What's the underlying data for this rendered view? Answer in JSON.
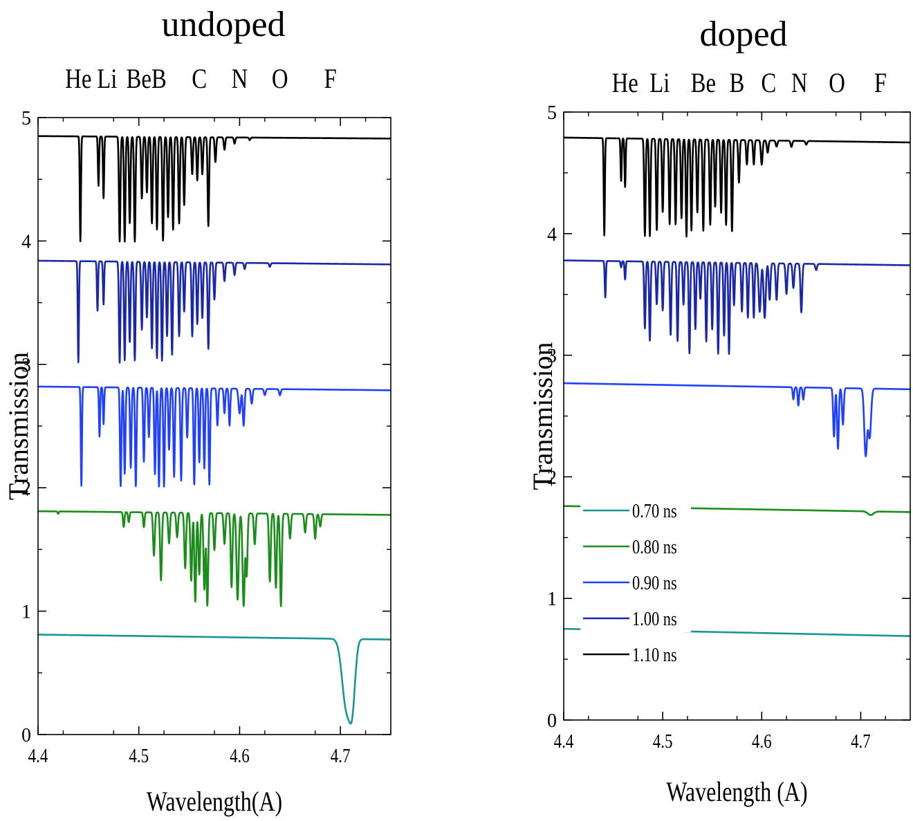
{
  "chart_data": [
    {
      "type": "line",
      "title": "undoped",
      "element_labels": [
        "He",
        "Li",
        "Be",
        "B",
        "C",
        "N",
        "O",
        "F"
      ],
      "element_positions": [
        4.44,
        4.4685,
        4.5,
        4.52,
        4.56,
        4.6,
        4.64,
        4.69
      ],
      "xlabel": "Wavelength(A)",
      "ylabel": "Transmission",
      "xlim": [
        4.4,
        4.75
      ],
      "ylim": [
        0,
        5
      ],
      "xticks": [
        "4.4",
        "4.5",
        "4.6",
        "4.7"
      ],
      "yticks": [
        "0",
        "1",
        "2",
        "3",
        "4",
        "5"
      ],
      "series": [
        {
          "name": "0.70 ns",
          "color": "#1a9494",
          "baseline": [
            0.81,
            0.77
          ],
          "dips": [
            [
              4.706,
              0.56,
              0.006
            ],
            [
              4.712,
              0.42,
              0.004
            ]
          ]
        },
        {
          "name": "0.80 ns",
          "color": "#1a8c1a",
          "baseline": [
            1.81,
            1.78
          ],
          "dips": [
            [
              4.42,
              0.02,
              0.0008
            ],
            [
              4.485,
              0.12,
              0.001
            ],
            [
              4.49,
              0.08,
              0.001
            ],
            [
              4.505,
              0.12,
              0.001
            ],
            [
              4.515,
              0.35,
              0.0012
            ],
            [
              4.522,
              0.55,
              0.0012
            ],
            [
              4.53,
              0.25,
              0.0012
            ],
            [
              4.538,
              0.2,
              0.0012
            ],
            [
              4.546,
              0.45,
              0.0012
            ],
            [
              4.552,
              0.55,
              0.0012
            ],
            [
              4.556,
              0.72,
              0.0012
            ],
            [
              4.56,
              0.5,
              0.0012
            ],
            [
              4.565,
              0.62,
              0.0012
            ],
            [
              4.568,
              0.75,
              0.0012
            ],
            [
              4.575,
              0.3,
              0.0012
            ],
            [
              4.585,
              0.25,
              0.0012
            ],
            [
              4.592,
              0.6,
              0.0012
            ],
            [
              4.598,
              0.7,
              0.0015
            ],
            [
              4.604,
              0.75,
              0.0015
            ],
            [
              4.607,
              0.5,
              0.0012
            ],
            [
              4.615,
              0.25,
              0.0012
            ],
            [
              4.63,
              0.55,
              0.0012
            ],
            [
              4.636,
              0.6,
              0.0012
            ],
            [
              4.641,
              0.75,
              0.0012
            ],
            [
              4.65,
              0.2,
              0.0012
            ],
            [
              4.665,
              0.15,
              0.0012
            ],
            [
              4.675,
              0.2,
              0.0012
            ],
            [
              4.68,
              0.1,
              0.0012
            ]
          ]
        },
        {
          "name": "0.90 ns",
          "color": "#2040ff",
          "baseline": [
            2.82,
            2.79
          ],
          "dips": [
            [
              4.443,
              0.8,
              0.0008
            ],
            [
              4.461,
              0.4,
              0.0008
            ],
            [
              4.465,
              0.3,
              0.0008
            ],
            [
              4.482,
              0.8,
              0.001
            ],
            [
              4.486,
              0.7,
              0.001
            ],
            [
              4.492,
              0.65,
              0.001
            ],
            [
              4.497,
              0.8,
              0.001
            ],
            [
              4.505,
              0.6,
              0.001
            ],
            [
              4.51,
              0.4,
              0.001
            ],
            [
              4.516,
              0.7,
              0.001
            ],
            [
              4.52,
              0.8,
              0.001
            ],
            [
              4.525,
              0.8,
              0.001
            ],
            [
              4.53,
              0.5,
              0.001
            ],
            [
              4.535,
              0.72,
              0.001
            ],
            [
              4.542,
              0.75,
              0.001
            ],
            [
              4.548,
              0.4,
              0.001
            ],
            [
              4.555,
              0.78,
              0.001
            ],
            [
              4.56,
              0.6,
              0.001
            ],
            [
              4.565,
              0.65,
              0.001
            ],
            [
              4.57,
              0.78,
              0.001
            ],
            [
              4.578,
              0.3,
              0.001
            ],
            [
              4.585,
              0.2,
              0.001
            ],
            [
              4.59,
              0.3,
              0.001
            ],
            [
              4.6,
              0.2,
              0.0015
            ],
            [
              4.604,
              0.3,
              0.0012
            ],
            [
              4.612,
              0.12,
              0.0012
            ],
            [
              4.625,
              0.05,
              0.0012
            ],
            [
              4.64,
              0.05,
              0.0012
            ]
          ]
        },
        {
          "name": "1.00 ns",
          "color": "#1a28a8",
          "baseline": [
            3.84,
            3.81
          ],
          "dips": [
            [
              4.44,
              0.82,
              0.0008
            ],
            [
              4.459,
              0.4,
              0.0008
            ],
            [
              4.465,
              0.35,
              0.0008
            ],
            [
              4.481,
              0.82,
              0.001
            ],
            [
              4.486,
              0.8,
              0.001
            ],
            [
              4.491,
              0.65,
              0.001
            ],
            [
              4.496,
              0.8,
              0.001
            ],
            [
              4.503,
              0.55,
              0.001
            ],
            [
              4.508,
              0.45,
              0.001
            ],
            [
              4.513,
              0.7,
              0.001
            ],
            [
              4.518,
              0.78,
              0.001
            ],
            [
              4.523,
              0.8,
              0.001
            ],
            [
              4.528,
              0.6,
              0.001
            ],
            [
              4.533,
              0.75,
              0.001
            ],
            [
              4.54,
              0.6,
              0.001
            ],
            [
              4.545,
              0.4,
              0.001
            ],
            [
              4.553,
              0.6,
              0.001
            ],
            [
              4.558,
              0.5,
              0.001
            ],
            [
              4.563,
              0.45,
              0.001
            ],
            [
              4.569,
              0.7,
              0.001
            ],
            [
              4.575,
              0.3,
              0.001
            ],
            [
              4.585,
              0.15,
              0.001
            ],
            [
              4.595,
              0.1,
              0.001
            ],
            [
              4.605,
              0.05,
              0.001
            ],
            [
              4.63,
              0.03,
              0.001
            ]
          ]
        },
        {
          "name": "1.10 ns",
          "color": "#000000",
          "baseline": [
            4.85,
            4.83
          ],
          "dips": [
            [
              4.442,
              0.85,
              0.0008
            ],
            [
              4.46,
              0.4,
              0.0008
            ],
            [
              4.465,
              0.5,
              0.0008
            ],
            [
              4.481,
              0.85,
              0.001
            ],
            [
              4.486,
              0.85,
              0.001
            ],
            [
              4.491,
              0.7,
              0.001
            ],
            [
              4.496,
              0.85,
              0.001
            ],
            [
              4.503,
              0.5,
              0.001
            ],
            [
              4.508,
              0.45,
              0.001
            ],
            [
              4.513,
              0.7,
              0.001
            ],
            [
              4.518,
              0.75,
              0.001
            ],
            [
              4.524,
              0.84,
              0.001
            ],
            [
              4.529,
              0.65,
              0.001
            ],
            [
              4.534,
              0.75,
              0.001
            ],
            [
              4.54,
              0.7,
              0.001
            ],
            [
              4.545,
              0.55,
              0.001
            ],
            [
              4.553,
              0.3,
              0.001
            ],
            [
              4.558,
              0.35,
              0.001
            ],
            [
              4.563,
              0.3,
              0.001
            ],
            [
              4.569,
              0.72,
              0.001
            ],
            [
              4.576,
              0.2,
              0.001
            ],
            [
              4.585,
              0.1,
              0.001
            ],
            [
              4.595,
              0.05,
              0.001
            ],
            [
              4.61,
              0.02,
              0.001
            ]
          ]
        }
      ]
    },
    {
      "type": "line",
      "title": "doped",
      "element_labels": [
        "He",
        "Li",
        "Be",
        "B",
        "C",
        "N",
        "O",
        "F"
      ],
      "element_positions": [
        4.462,
        4.497,
        4.541,
        4.575,
        4.607,
        4.638,
        4.676,
        4.72
      ],
      "xlabel": "Wavelength (A)",
      "ylabel": "Transmission",
      "xlim": [
        4.4,
        4.75
      ],
      "ylim": [
        0,
        5
      ],
      "xticks": [
        "4.4",
        "4.5",
        "4.6",
        "4.7"
      ],
      "yticks": [
        "0",
        "1",
        "2",
        "3",
        "4",
        "5"
      ],
      "legend_position": "lower-left",
      "series": [
        {
          "name": "0.70 ns",
          "color": "#1a9494",
          "baseline": [
            0.75,
            0.69
          ],
          "dips": []
        },
        {
          "name": "0.80 ns",
          "color": "#1a8c1a",
          "baseline": [
            1.76,
            1.71
          ],
          "dips": [
            [
              4.71,
              0.03,
              0.004
            ]
          ]
        },
        {
          "name": "0.90 ns",
          "color": "#2040ff",
          "baseline": [
            2.77,
            2.72
          ],
          "dips": [
            [
              4.632,
              0.1,
              0.001
            ],
            [
              4.637,
              0.15,
              0.001
            ],
            [
              4.642,
              0.1,
              0.001
            ],
            [
              4.673,
              0.4,
              0.0012
            ],
            [
              4.677,
              0.5,
              0.0012
            ],
            [
              4.682,
              0.3,
              0.0012
            ],
            [
              4.705,
              0.55,
              0.002
            ],
            [
              4.709,
              0.4,
              0.002
            ]
          ]
        },
        {
          "name": "1.00 ns",
          "color": "#1a28a8",
          "baseline": [
            3.78,
            3.74
          ],
          "dips": [
            [
              4.442,
              0.3,
              0.0008
            ],
            [
              4.458,
              0.05,
              0.0008
            ],
            [
              4.462,
              0.15,
              0.0008
            ],
            [
              4.482,
              0.55,
              0.001
            ],
            [
              4.487,
              0.65,
              0.001
            ],
            [
              4.494,
              0.35,
              0.001
            ],
            [
              4.5,
              0.4,
              0.001
            ],
            [
              4.508,
              0.6,
              0.001
            ],
            [
              4.515,
              0.65,
              0.001
            ],
            [
              4.521,
              0.35,
              0.001
            ],
            [
              4.527,
              0.75,
              0.001
            ],
            [
              4.533,
              0.55,
              0.001
            ],
            [
              4.538,
              0.3,
              0.001
            ],
            [
              4.544,
              0.65,
              0.001
            ],
            [
              4.55,
              0.55,
              0.001
            ],
            [
              4.556,
              0.75,
              0.001
            ],
            [
              4.562,
              0.6,
              0.001
            ],
            [
              4.567,
              0.75,
              0.001
            ],
            [
              4.572,
              0.35,
              0.001
            ],
            [
              4.58,
              0.4,
              0.001
            ],
            [
              4.586,
              0.45,
              0.001
            ],
            [
              4.592,
              0.45,
              0.001
            ],
            [
              4.598,
              0.4,
              0.0015
            ],
            [
              4.603,
              0.45,
              0.0015
            ],
            [
              4.608,
              0.3,
              0.0012
            ],
            [
              4.615,
              0.3,
              0.0012
            ],
            [
              4.625,
              0.25,
              0.0012
            ],
            [
              4.632,
              0.2,
              0.0012
            ],
            [
              4.64,
              0.4,
              0.0012
            ],
            [
              4.655,
              0.05,
              0.0012
            ]
          ]
        },
        {
          "name": "1.10 ns",
          "color": "#000000",
          "baseline": [
            4.79,
            4.75
          ],
          "dips": [
            [
              4.441,
              0.8,
              0.0008
            ],
            [
              4.458,
              0.35,
              0.0008
            ],
            [
              4.462,
              0.4,
              0.0008
            ],
            [
              4.482,
              0.8,
              0.001
            ],
            [
              4.487,
              0.8,
              0.001
            ],
            [
              4.494,
              0.75,
              0.001
            ],
            [
              4.5,
              0.6,
              0.001
            ],
            [
              4.507,
              0.7,
              0.001
            ],
            [
              4.513,
              0.7,
              0.001
            ],
            [
              4.519,
              0.65,
              0.001
            ],
            [
              4.524,
              0.8,
              0.001
            ],
            [
              4.529,
              0.75,
              0.001
            ],
            [
              4.535,
              0.6,
              0.001
            ],
            [
              4.541,
              0.75,
              0.001
            ],
            [
              4.548,
              0.7,
              0.001
            ],
            [
              4.553,
              0.55,
              0.001
            ],
            [
              4.559,
              0.6,
              0.001
            ],
            [
              4.564,
              0.7,
              0.001
            ],
            [
              4.57,
              0.75,
              0.001
            ],
            [
              4.577,
              0.35,
              0.001
            ],
            [
              4.585,
              0.2,
              0.001
            ],
            [
              4.592,
              0.2,
              0.001
            ],
            [
              4.6,
              0.2,
              0.0012
            ],
            [
              4.606,
              0.1,
              0.0012
            ],
            [
              4.615,
              0.05,
              0.0012
            ],
            [
              4.63,
              0.05,
              0.0012
            ],
            [
              4.645,
              0.03,
              0.0012
            ]
          ]
        }
      ]
    }
  ]
}
